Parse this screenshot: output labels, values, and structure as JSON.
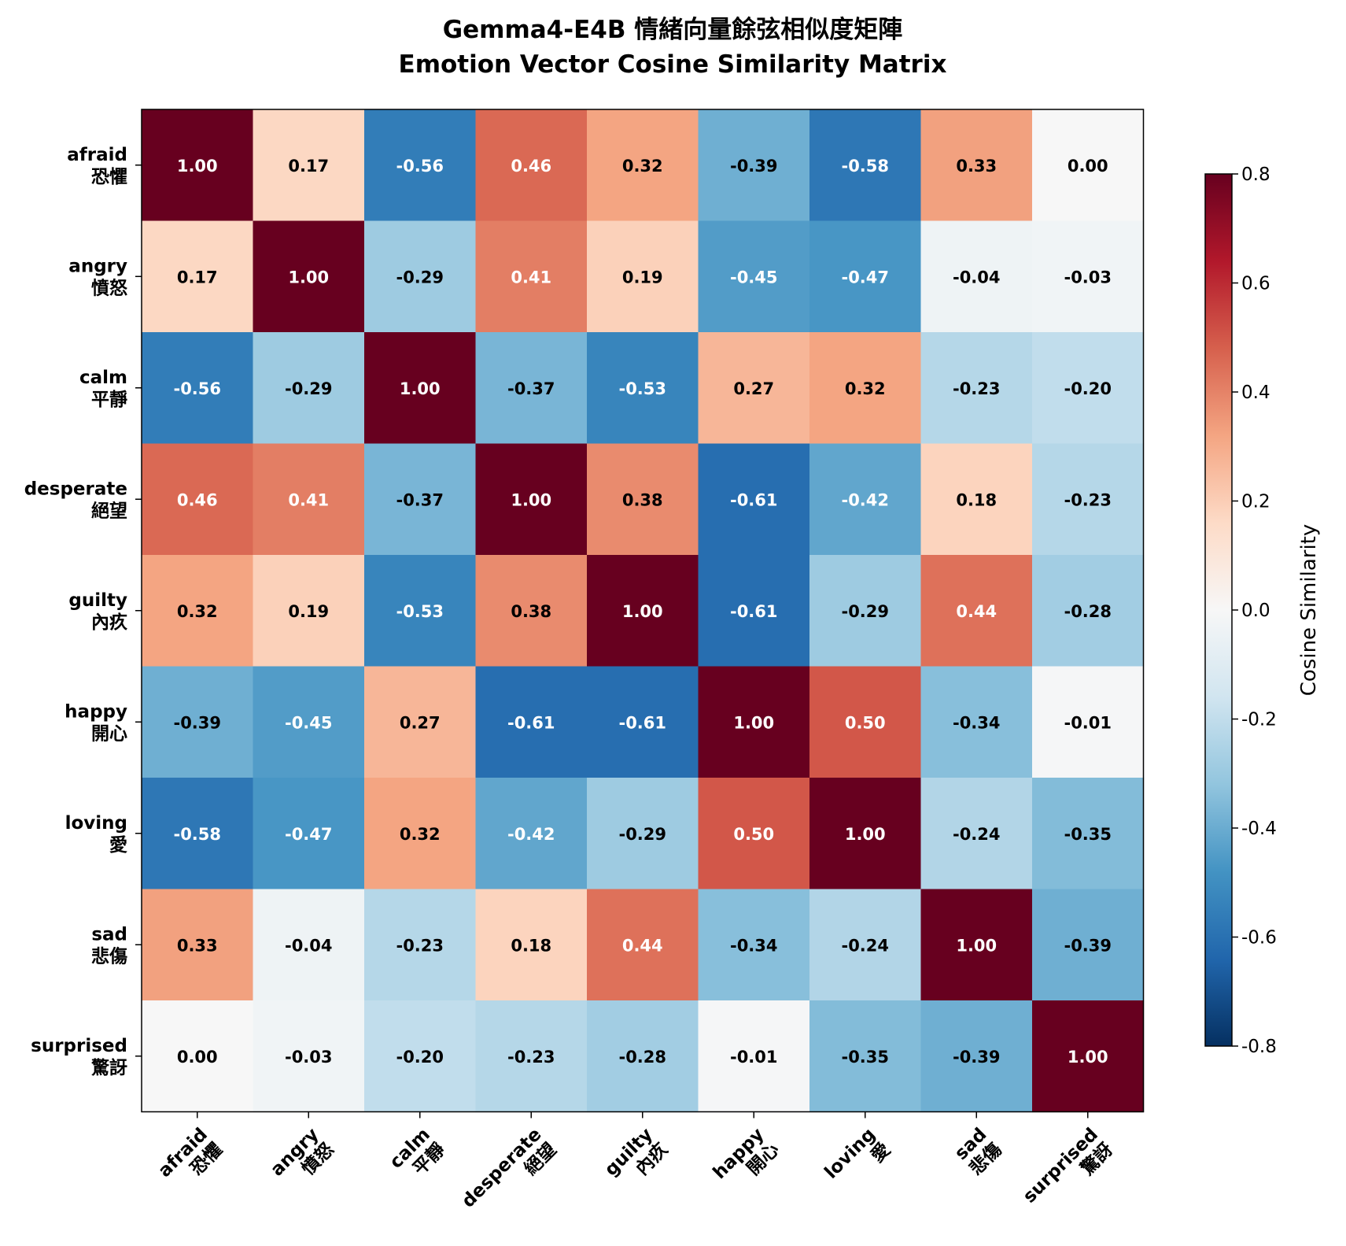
{
  "chart_data": {
    "type": "heatmap",
    "title": [
      "Gemma4-E4B 情緒向量餘弦相似度矩陣",
      "Emotion Vector Cosine Similarity Matrix"
    ],
    "row_labels": [
      [
        "afraid",
        "恐懼"
      ],
      [
        "angry",
        "憤怒"
      ],
      [
        "calm",
        "平靜"
      ],
      [
        "desperate",
        "絕望"
      ],
      [
        "guilty",
        "內疚"
      ],
      [
        "happy",
        "開心"
      ],
      [
        "loving",
        "愛"
      ],
      [
        "sad",
        "悲傷"
      ],
      [
        "surprised",
        "驚訝"
      ]
    ],
    "col_labels": [
      [
        "afraid",
        "恐懼"
      ],
      [
        "angry",
        "憤怒"
      ],
      [
        "calm",
        "平靜"
      ],
      [
        "desperate",
        "絕望"
      ],
      [
        "guilty",
        "內疚"
      ],
      [
        "happy",
        "開心"
      ],
      [
        "loving",
        "愛"
      ],
      [
        "sad",
        "悲傷"
      ],
      [
        "surprised",
        "驚訝"
      ]
    ],
    "values": [
      [
        1.0,
        0.17,
        -0.56,
        0.46,
        0.32,
        -0.39,
        -0.58,
        0.33,
        0.0
      ],
      [
        0.17,
        1.0,
        -0.29,
        0.41,
        0.19,
        -0.45,
        -0.47,
        -0.04,
        -0.03
      ],
      [
        -0.56,
        -0.29,
        1.0,
        -0.37,
        -0.53,
        0.27,
        0.32,
        -0.23,
        -0.2
      ],
      [
        0.46,
        0.41,
        -0.37,
        1.0,
        0.38,
        -0.61,
        -0.42,
        0.18,
        -0.23
      ],
      [
        0.32,
        0.19,
        -0.53,
        0.38,
        1.0,
        -0.61,
        -0.29,
        0.44,
        -0.28
      ],
      [
        -0.39,
        -0.45,
        0.27,
        -0.61,
        -0.61,
        1.0,
        0.5,
        -0.34,
        -0.01
      ],
      [
        -0.58,
        -0.47,
        0.32,
        -0.42,
        -0.29,
        0.5,
        1.0,
        -0.24,
        -0.35
      ],
      [
        0.33,
        -0.04,
        -0.23,
        0.18,
        0.44,
        -0.34,
        -0.24,
        1.0,
        -0.39
      ],
      [
        0.0,
        -0.03,
        -0.2,
        -0.23,
        -0.28,
        -0.01,
        -0.35,
        -0.39,
        1.0
      ]
    ],
    "value_format": "0.00",
    "colormap": "RdBu_r",
    "vmin": -0.8,
    "vmax": 0.8,
    "colorbar": {
      "label": "Cosine Similarity",
      "ticks": [
        -0.8,
        -0.6,
        -0.4,
        -0.2,
        0.0,
        0.2,
        0.4,
        0.6,
        0.8
      ],
      "tick_labels": [
        "-0.8",
        "-0.6",
        "-0.4",
        "-0.2",
        "0.0",
        "0.2",
        "0.4",
        "0.6",
        "0.8"
      ]
    },
    "colormap_stops": [
      "#053061",
      "#2166ac",
      "#4393c3",
      "#92c5de",
      "#d1e5f0",
      "#f7f7f7",
      "#fddbc7",
      "#f4a582",
      "#d6604d",
      "#b2182b",
      "#67001f"
    ]
  }
}
